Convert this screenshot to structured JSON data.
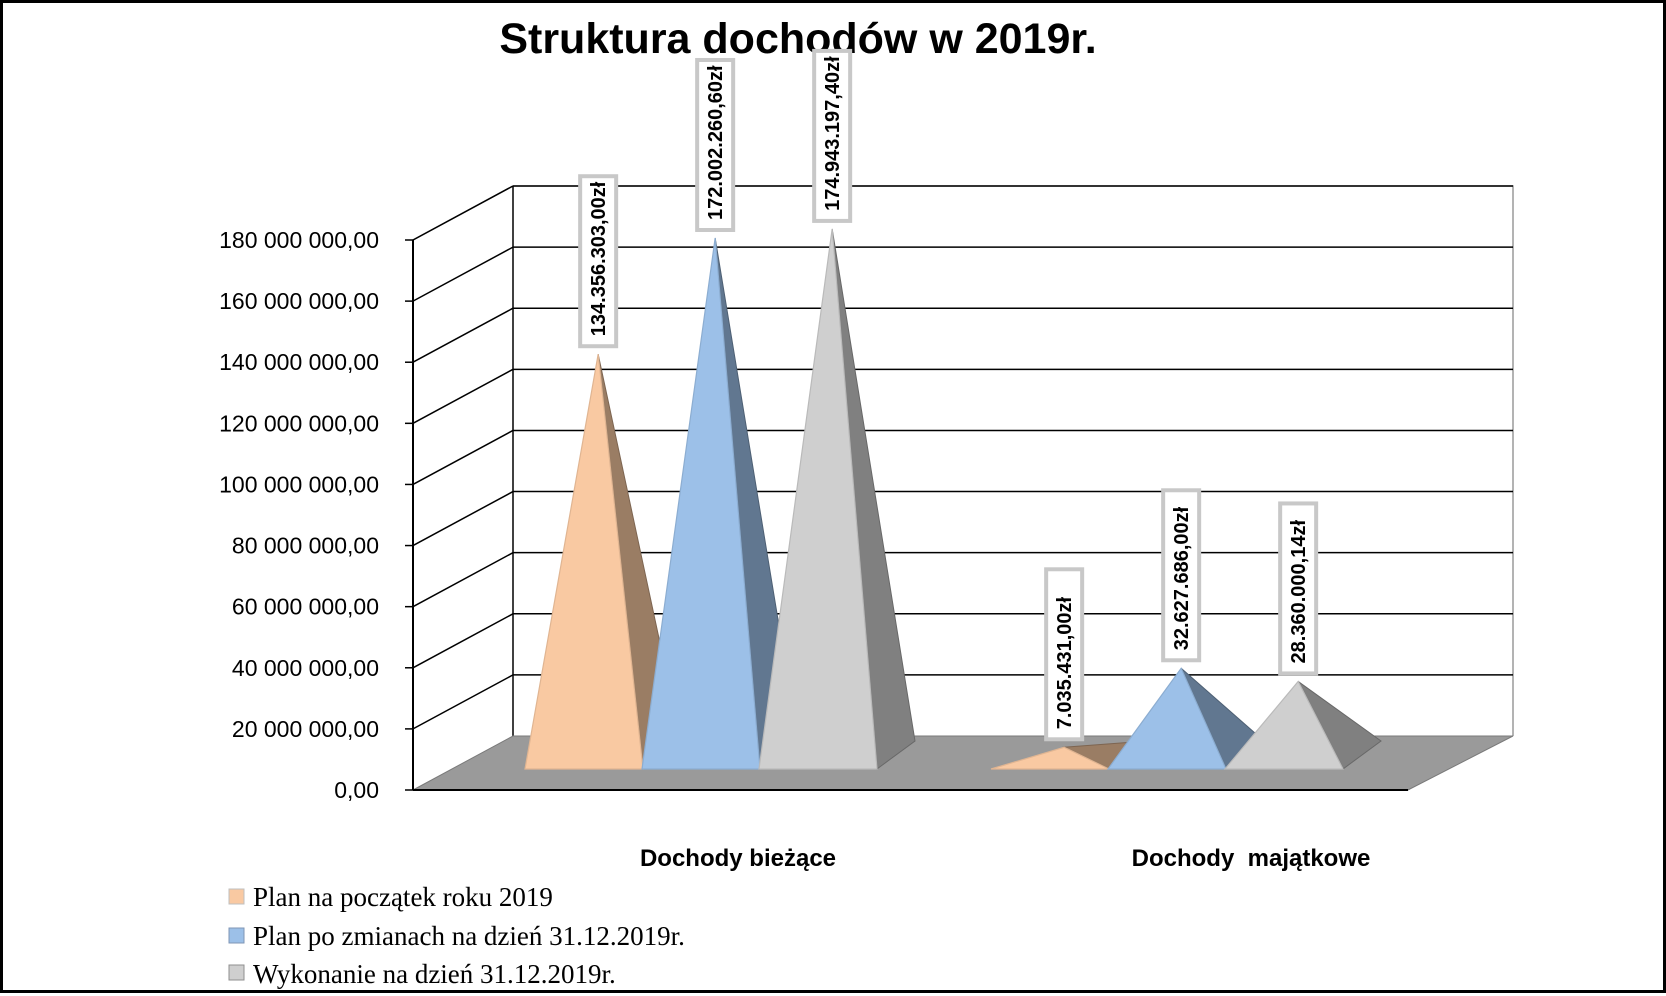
{
  "chart_data": {
    "type": "bar",
    "title": "Struktura dochodów w 2019r.",
    "categories": [
      "Dochody bieżące",
      "Dochody  majątkowe"
    ],
    "series": [
      {
        "name": "Plan na początek roku 2019",
        "values": [
          134356303.0,
          7035431.0
        ],
        "labels": [
          "134.356.303,00zł",
          "7.035.431,00zł"
        ],
        "color": "#f9c9a2"
      },
      {
        "name": "Plan po zmianach na dzień 31.12.2019r.",
        "values": [
          172002260.6,
          32627686.0
        ],
        "labels": [
          "172.002.260,60zł",
          "32.627.686,00zł"
        ],
        "color": "#9cc0e8"
      },
      {
        "name": "Wykonanie na dzień 31.12.2019r.",
        "values": [
          174943197.4,
          28360000.14
        ],
        "labels": [
          "174.943.197,40zł",
          "28.360.000,14zł"
        ],
        "color": "#cfcfcf"
      }
    ],
    "ylim": [
      0,
      180000000
    ],
    "yticks": [
      "0,00",
      "20 000 000,00",
      "40 000 000,00",
      "60 000 000,00",
      "80 000 000,00",
      "100 000 000,00",
      "120 000 000,00",
      "140 000 000,00",
      "160 000 000,00",
      "180 000 000,00"
    ],
    "shape": "pyramid-3d",
    "grid": true,
    "legend_position": "bottom-left"
  }
}
